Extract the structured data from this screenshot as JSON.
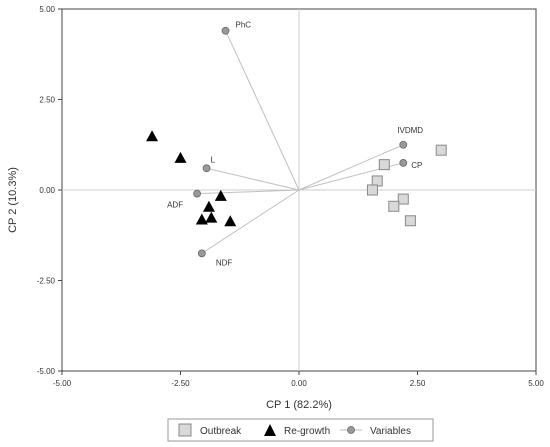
{
  "chart_data": {
    "type": "scatter",
    "xlabel": "CP 1 (82.2%)",
    "ylabel": "CP 2 (10.3%)",
    "xlim": [
      -5,
      5
    ],
    "ylim": [
      -5,
      5
    ],
    "x_ticks": [
      "-5.00",
      "-2.50",
      "0.00",
      "2.50",
      "5.00"
    ],
    "y_ticks": [
      "5.00",
      "2.50",
      "0.00",
      "-2.50",
      "-5.00"
    ],
    "legend_position": "bottom",
    "series": [
      {
        "name": "Outbreak",
        "marker": "square",
        "color": "#d9d9d9",
        "points": [
          {
            "x": 3.0,
            "y": 1.1
          },
          {
            "x": 1.8,
            "y": 0.7
          },
          {
            "x": 1.65,
            "y": 0.25
          },
          {
            "x": 1.55,
            "y": 0.0
          },
          {
            "x": 2.2,
            "y": -0.25
          },
          {
            "x": 2.0,
            "y": -0.45
          },
          {
            "x": 2.35,
            "y": -0.85
          }
        ]
      },
      {
        "name": "Re-growth",
        "marker": "triangle",
        "color": "#000000",
        "points": [
          {
            "x": -3.1,
            "y": 1.5
          },
          {
            "x": -2.5,
            "y": 0.9
          },
          {
            "x": -1.65,
            "y": -0.15
          },
          {
            "x": -1.9,
            "y": -0.45
          },
          {
            "x": -1.85,
            "y": -0.75
          },
          {
            "x": -2.05,
            "y": -0.8
          },
          {
            "x": -1.45,
            "y": -0.85
          }
        ]
      },
      {
        "name": "Variables",
        "marker": "circle",
        "color": "#999999",
        "points": [
          {
            "label": "PhC",
            "x": -1.55,
            "y": 4.4
          },
          {
            "label": "L",
            "x": -1.95,
            "y": 0.6
          },
          {
            "label": "ADF",
            "x": -2.15,
            "y": -0.1
          },
          {
            "label": "NDF",
            "x": -2.05,
            "y": -1.75
          },
          {
            "label": "IVDMD",
            "x": 2.2,
            "y": 1.25
          },
          {
            "label": "CP",
            "x": 2.2,
            "y": 0.75
          }
        ]
      }
    ]
  }
}
